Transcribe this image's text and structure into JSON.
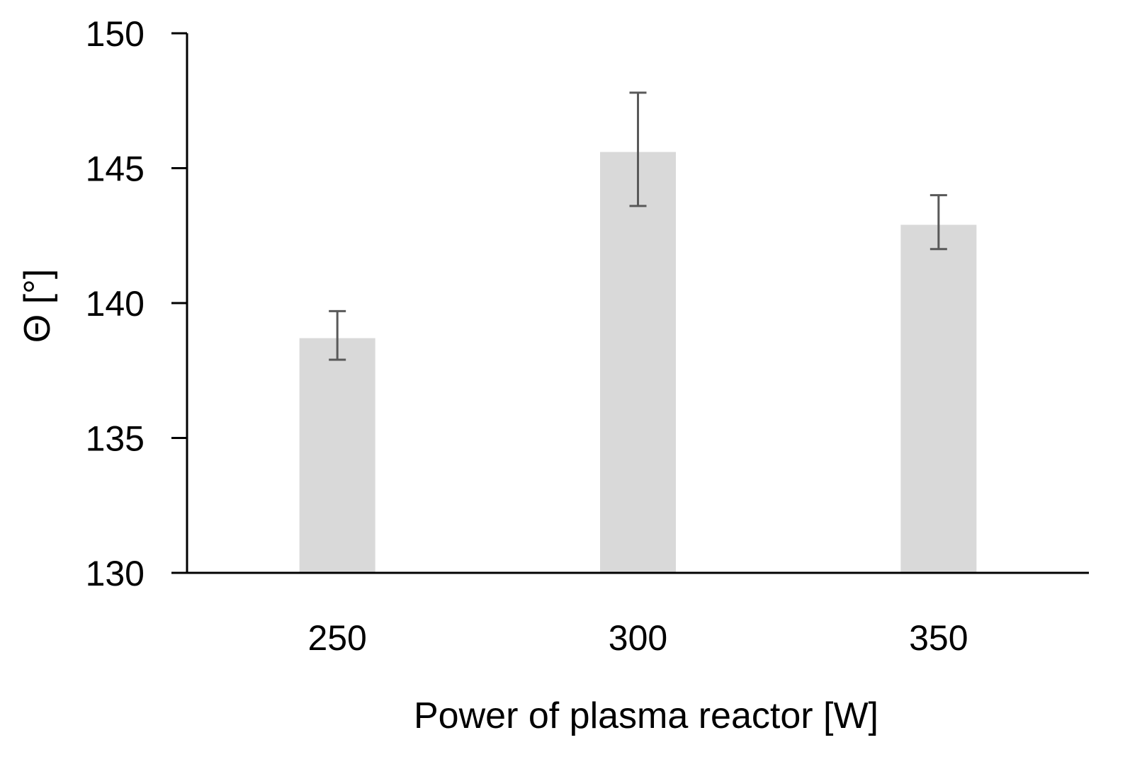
{
  "chart_data": {
    "type": "bar",
    "title": "",
    "xlabel": "Power of plasma reactor [W]",
    "ylabel": "Θ [°]",
    "categories": [
      "250",
      "300",
      "350"
    ],
    "values": [
      138.7,
      145.6,
      142.9
    ],
    "error_low": [
      137.9,
      143.6,
      142.0
    ],
    "error_high": [
      139.7,
      147.8,
      144.0
    ],
    "ylim": [
      130,
      150
    ],
    "yticks": [
      "130",
      "135",
      "140",
      "145",
      "150"
    ],
    "grid": false,
    "legend": "none",
    "colors": {
      "bar": "#d9d9d9",
      "error_bar": "#595959",
      "axis": "#000000"
    }
  }
}
